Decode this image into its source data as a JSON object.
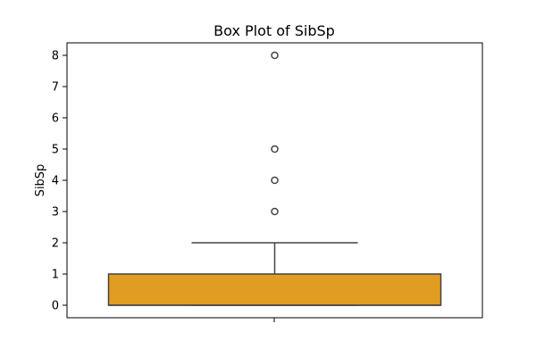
{
  "chart_data": {
    "type": "box",
    "title": "Box Plot of SibSp",
    "xlabel": "",
    "ylabel": "SibSp",
    "ylim": [
      -0.4,
      8.4
    ],
    "yticks": [
      0,
      1,
      2,
      3,
      4,
      5,
      6,
      7,
      8
    ],
    "box": {
      "min": 0,
      "q1": 0,
      "median": 0,
      "q3": 1,
      "whisker_low": 0,
      "whisker_high": 2,
      "outliers": [
        3,
        4,
        5,
        8
      ]
    },
    "colors": {
      "box_fill": "#e19d22",
      "line": "#444444"
    }
  }
}
